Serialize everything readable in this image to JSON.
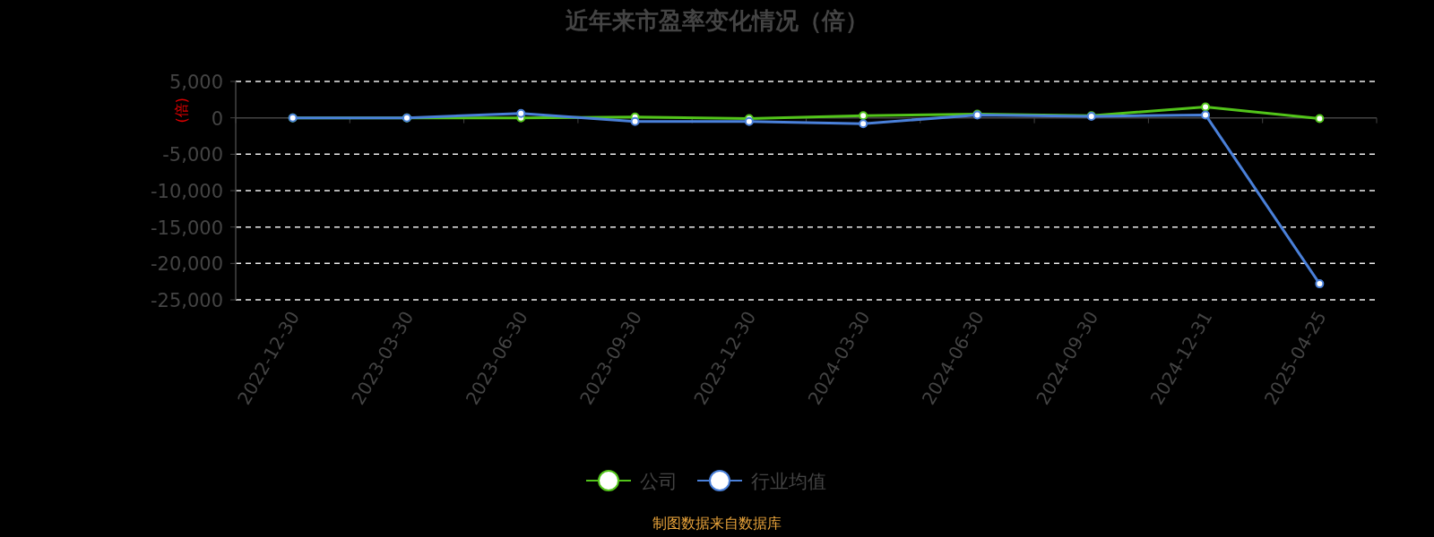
{
  "chart_data": {
    "type": "line",
    "title": "近年来市盈率变化情况（倍）",
    "ylabel": "(倍)",
    "categories": [
      "2022-12-30",
      "2023-03-30",
      "2023-06-30",
      "2023-09-30",
      "2023-12-30",
      "2024-03-30",
      "2024-06-30",
      "2024-09-30",
      "2024-12-31",
      "2025-04-25"
    ],
    "series": [
      {
        "name": "公司",
        "color": "#52c41a",
        "values": [
          0,
          0,
          0,
          100,
          -100,
          300,
          500,
          300,
          1500,
          -100
        ]
      },
      {
        "name": "行业均值",
        "color": "#4a80d9",
        "values": [
          0,
          0,
          600,
          -500,
          -500,
          -800,
          400,
          200,
          400,
          -22800
        ]
      }
    ],
    "ylim": [
      -25000,
      5000
    ],
    "yticks": [
      {
        "value": 5000,
        "label": "5,000"
      },
      0,
      {
        "value": -5000,
        "label": "-5,000"
      },
      {
        "value": -10000,
        "label": "-10,000"
      },
      {
        "value": -15000,
        "label": "-15,000"
      },
      {
        "value": -20000,
        "label": "-20,000"
      },
      {
        "value": -25000,
        "label": "-25,000"
      }
    ],
    "grid": "y",
    "legend": "bottom",
    "marker": "circle",
    "line_style": "solid",
    "annotations": [
      "制图数据来自数据库"
    ]
  }
}
